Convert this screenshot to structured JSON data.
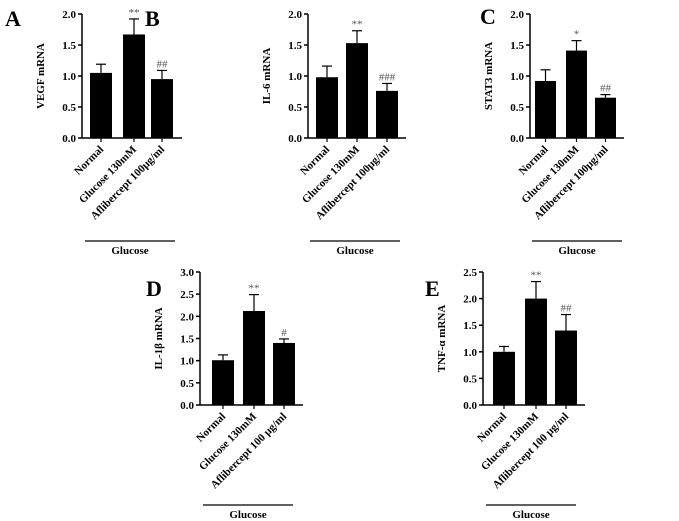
{
  "chart_data": [
    {
      "type": "bar",
      "panel": "A",
      "ylabel": "VEGF mRNA",
      "ylim": [
        0,
        2.0
      ],
      "yticks": [
        "0.0",
        "0.5",
        "1.0",
        "1.5",
        "2.0"
      ],
      "categories": [
        "Normal",
        "Glucose 130mM",
        "Aflibercept 100μg/ml"
      ],
      "values": [
        1.05,
        1.67,
        0.95
      ],
      "errors": [
        0.14,
        0.25,
        0.14
      ],
      "significance": [
        "",
        "**",
        "##"
      ],
      "group_label": "Glucose"
    },
    {
      "type": "bar",
      "panel": "B",
      "ylabel": "IL-6 mRNA",
      "ylim": [
        0,
        2.0
      ],
      "yticks": [
        "0.0",
        "0.5",
        "1.0",
        "1.5",
        "2.0"
      ],
      "categories": [
        "Normal",
        "Glucose 130mM",
        "Aflibercept 100μg/ml"
      ],
      "values": [
        0.98,
        1.53,
        0.76
      ],
      "errors": [
        0.18,
        0.2,
        0.12
      ],
      "significance": [
        "",
        "**",
        "###"
      ],
      "group_label": "Glucose"
    },
    {
      "type": "bar",
      "panel": "C",
      "ylabel": "STAT3 mRNA",
      "ylim": [
        0,
        2.0
      ],
      "yticks": [
        "0.0",
        "0.5",
        "1.0",
        "1.5",
        "2.0"
      ],
      "categories": [
        "Normal",
        "Glucose 130mM",
        "Aflibercept 100μg/ml"
      ],
      "values": [
        0.92,
        1.41,
        0.65
      ],
      "errors": [
        0.18,
        0.16,
        0.05
      ],
      "significance": [
        "",
        "*",
        "##"
      ],
      "group_label": "Glucose"
    },
    {
      "type": "bar",
      "panel": "D",
      "ylabel": "IL-1β mRNA",
      "ylim": [
        0,
        3.0
      ],
      "yticks": [
        "0.0",
        "0.5",
        "1.0",
        "1.5",
        "2.0",
        "2.5",
        "3.0"
      ],
      "categories": [
        "Normal",
        "Glucose 130mM",
        "Aflibercept 100 μg/ml"
      ],
      "values": [
        1.01,
        2.12,
        1.4
      ],
      "errors": [
        0.12,
        0.37,
        0.09
      ],
      "significance": [
        "",
        "**",
        "#"
      ],
      "group_label": "Glucose"
    },
    {
      "type": "bar",
      "panel": "E",
      "ylabel": "TNF-α mRNA",
      "ylim": [
        0,
        2.5
      ],
      "yticks": [
        "0.0",
        "0.5",
        "1.0",
        "1.5",
        "2.0",
        "2.5"
      ],
      "categories": [
        "Normal",
        "Glucose 130mM",
        "Aflibercept 100 μg/ml"
      ],
      "values": [
        1.0,
        2.0,
        1.4
      ],
      "errors": [
        0.1,
        0.32,
        0.3
      ],
      "significance": [
        "",
        "**",
        "##"
      ],
      "group_label": "Glucose"
    }
  ]
}
